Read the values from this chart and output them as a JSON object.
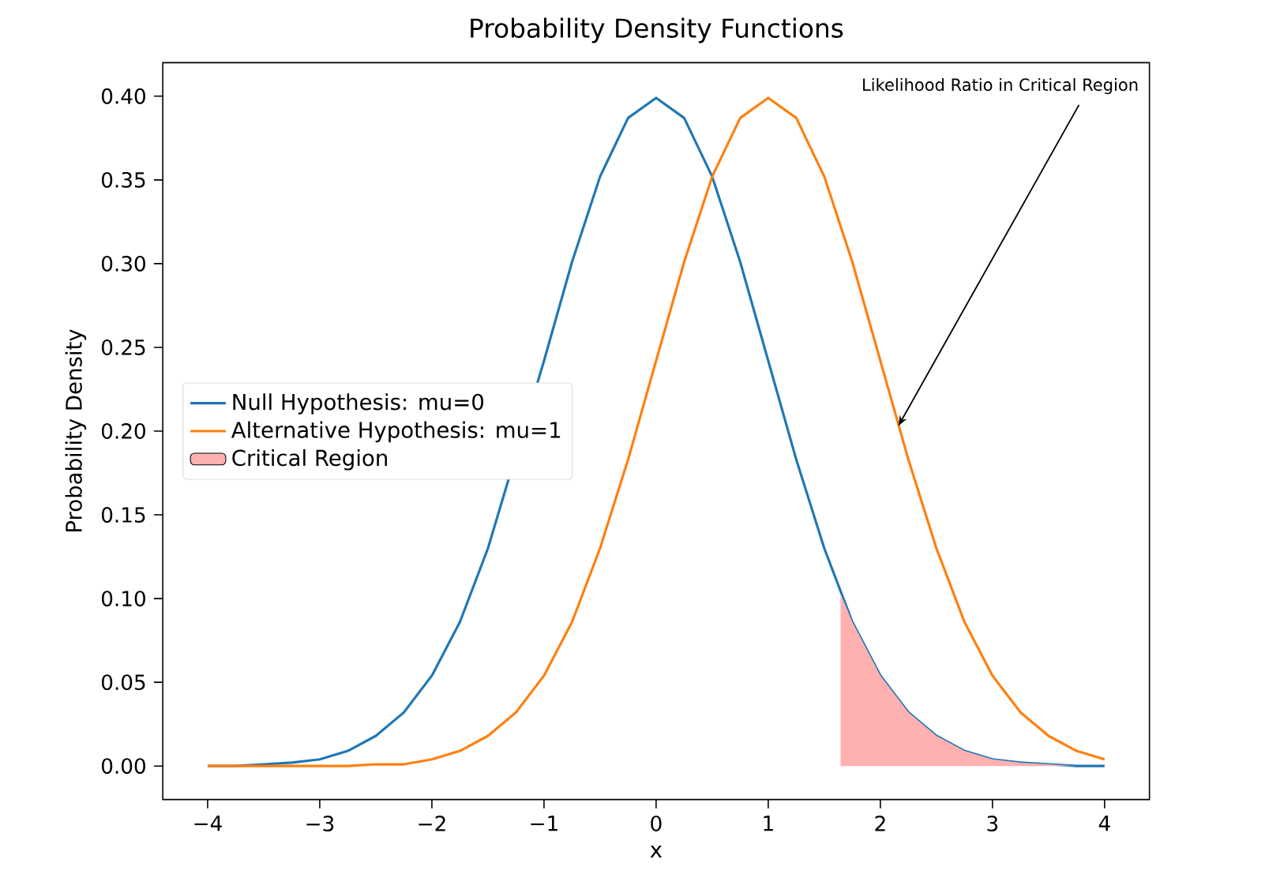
{
  "chart_data": {
    "type": "line",
    "title": "Probability Density Functions",
    "xlabel": "x",
    "ylabel": "Probability Density",
    "xlim": [
      -4.4,
      4.4
    ],
    "ylim": [
      -0.02,
      0.42
    ],
    "xticks": [
      {
        "value": -4,
        "label": "−4"
      },
      {
        "value": -3,
        "label": "−3"
      },
      {
        "value": -2,
        "label": "−2"
      },
      {
        "value": -1,
        "label": "−1"
      },
      0,
      1,
      2,
      3,
      4
    ],
    "yticks": [
      {
        "value": 0,
        "label": "0.00"
      },
      {
        "value": 0.05,
        "label": "0.05"
      },
      {
        "value": 0.1,
        "label": "0.10"
      },
      {
        "value": 0.15,
        "label": "0.15"
      },
      {
        "value": 0.2,
        "label": "0.20"
      },
      {
        "value": 0.25,
        "label": "0.25"
      },
      {
        "value": 0.3,
        "label": "0.30"
      },
      {
        "value": 0.35,
        "label": "0.35"
      },
      {
        "value": 0.4,
        "label": "0.40"
      }
    ],
    "x": [
      -4,
      -3.75,
      -3.5,
      -3.25,
      -3,
      -2.75,
      -2.5,
      -2.25,
      -2,
      -1.75,
      -1.5,
      -1.25,
      -1,
      -0.75,
      -0.5,
      -0.25,
      0,
      0.25,
      0.5,
      0.75,
      1,
      1.25,
      1.5,
      1.75,
      2,
      2.25,
      2.5,
      2.75,
      3,
      3.25,
      3.5,
      3.75,
      4
    ],
    "series": [
      {
        "name": "Null Hypothesis: mu=0",
        "color": "#1f77b4",
        "x": [
          -4,
          -3.75,
          -3.5,
          -3.25,
          -3,
          -2.75,
          -2.5,
          -2.25,
          -2,
          -1.75,
          -1.5,
          -1,
          -0.75,
          -0.5,
          -0.25,
          0,
          0.25,
          0.5,
          0.75,
          1,
          1.25,
          1.5,
          1.75,
          2,
          2.25,
          2.5,
          2.75,
          3,
          3.25,
          3.5,
          3.75,
          4
        ],
        "values": [
          0.0,
          0.0,
          0.001,
          0.002,
          0.004,
          0.009,
          0.018,
          0.032,
          0.054,
          0.086,
          0.13,
          0.242,
          0.301,
          0.352,
          0.387,
          0.399,
          0.387,
          0.352,
          0.301,
          0.242,
          0.183,
          0.13,
          0.086,
          0.054,
          0.032,
          0.018,
          0.009,
          0.004,
          0.002,
          0.001,
          0.0,
          0.0
        ]
      },
      {
        "name": "Alternative Hypothesis: mu=1",
        "color": "#ff7f0e",
        "values": [
          0.0,
          0.0,
          0.0,
          0.0,
          0.0,
          0.0,
          0.001,
          0.001,
          0.004,
          0.009,
          0.018,
          0.032,
          0.054,
          0.086,
          0.13,
          0.183,
          0.242,
          0.301,
          0.352,
          0.387,
          0.399,
          0.387,
          0.352,
          0.301,
          0.242,
          0.183,
          0.13,
          0.086,
          0.054,
          0.032,
          0.018,
          0.009,
          0.004
        ]
      },
      {
        "name": "Critical Region",
        "type": "area",
        "color": "#ffb0b0",
        "x": [
          1.645,
          1.75,
          2,
          2.25,
          2.5,
          2.75,
          3,
          3.25,
          3.5,
          3.75,
          4
        ],
        "values": [
          0.103,
          0.086,
          0.054,
          0.032,
          0.018,
          0.009,
          0.004,
          0.002,
          0.001,
          0.0,
          0.0
        ]
      }
    ],
    "annotations": [
      {
        "text": "Likelihood Ratio in Critical Region",
        "x": 2.16,
        "y": 0.203
      }
    ],
    "legend": "left"
  }
}
